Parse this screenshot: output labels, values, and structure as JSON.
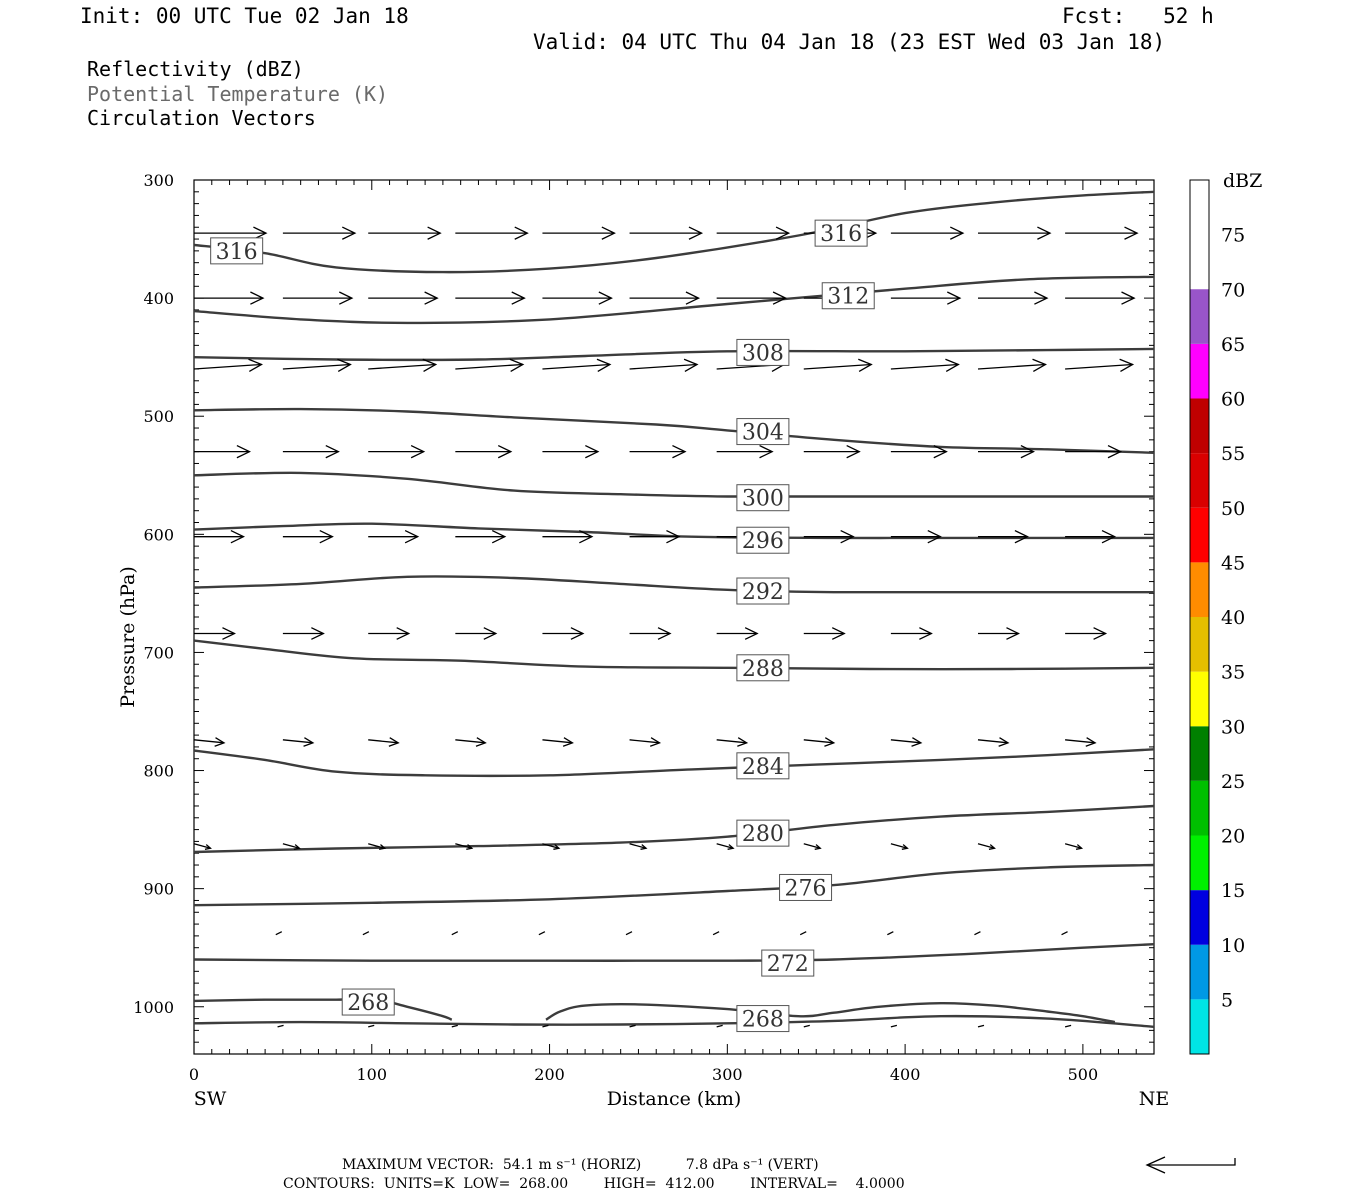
{
  "header": {
    "init": "Init: 00 UTC Tue 02 Jan 18",
    "fcst": "Fcst:   52 h",
    "valid": "Valid: 04 UTC Thu 04 Jan 18 (23 EST Wed 03 Jan 18)"
  },
  "legend": [
    "Reflectivity (dBZ)",
    "Potential Temperature (K)",
    "Circulation Vectors"
  ],
  "footer": {
    "line1": "MAXIMUM VECTOR:  54.1 m s⁻¹ (HORIZ)          7.8 dPa s⁻¹ (VERT)",
    "line2": "CONTOURS:  UNITS=K  LOW=  268.00        HIGH=  412.00        INTERVAL=    4.0000"
  },
  "colors": {
    "contour": "#3c3c3c",
    "vector": "#000000",
    "colorbar": [
      "#00e5e5",
      "#0099e5",
      "#0000e0",
      "#00f000",
      "#00c000",
      "#008000",
      "#ffff00",
      "#e5bf00",
      "#ff8c00",
      "#ff0000",
      "#d90000",
      "#bf0000",
      "#ff00ff",
      "#9955c9"
    ]
  },
  "chart_data": {
    "type": "cross-section",
    "xlabel": "Distance (km)",
    "ylabel": "Pressure (hPa)",
    "xlim": [
      0,
      540
    ],
    "ylim": [
      1040,
      300
    ],
    "x_ticks": [
      0,
      100,
      200,
      300,
      400,
      500
    ],
    "y_ticks": [
      300,
      400,
      500,
      600,
      700,
      800,
      900,
      1000
    ],
    "x_end_labels": {
      "left": "SW",
      "right": "NE"
    },
    "colorbar": {
      "unit": "dBZ",
      "ticks": [
        5,
        10,
        15,
        20,
        25,
        30,
        35,
        40,
        45,
        50,
        55,
        60,
        65,
        70,
        75
      ]
    },
    "contours": [
      {
        "label": "316",
        "points": [
          [
            0,
            355
          ],
          [
            40,
            362
          ],
          [
            80,
            374
          ],
          [
            140,
            378
          ],
          [
            200,
            375
          ],
          [
            260,
            366
          ],
          [
            340,
            347
          ],
          [
            400,
            328
          ],
          [
            450,
            319
          ],
          [
            500,
            313
          ],
          [
            540,
            310
          ]
        ],
        "labels_at": [
          [
            24,
            360
          ],
          [
            364,
            345
          ]
        ]
      },
      {
        "label": "312",
        "points": [
          [
            0,
            411
          ],
          [
            60,
            418
          ],
          [
            120,
            421
          ],
          [
            200,
            418
          ],
          [
            300,
            405
          ],
          [
            400,
            392
          ],
          [
            470,
            384
          ],
          [
            540,
            382
          ]
        ],
        "labels_at": [
          [
            368,
            398
          ]
        ]
      },
      {
        "label": "308",
        "points": [
          [
            0,
            450
          ],
          [
            80,
            452
          ],
          [
            160,
            452
          ],
          [
            220,
            449
          ],
          [
            300,
            445
          ],
          [
            400,
            445
          ],
          [
            480,
            444
          ],
          [
            540,
            443
          ]
        ],
        "labels_at": [
          [
            320,
            446
          ]
        ]
      },
      {
        "label": "304",
        "points": [
          [
            0,
            495
          ],
          [
            60,
            494
          ],
          [
            120,
            496
          ],
          [
            180,
            501
          ],
          [
            260,
            507
          ],
          [
            300,
            512
          ],
          [
            360,
            520
          ],
          [
            420,
            526
          ],
          [
            480,
            528
          ],
          [
            540,
            531
          ]
        ],
        "labels_at": [
          [
            320,
            513
          ]
        ]
      },
      {
        "label": "300",
        "points": [
          [
            0,
            550
          ],
          [
            60,
            548
          ],
          [
            120,
            553
          ],
          [
            180,
            563
          ],
          [
            240,
            566
          ],
          [
            300,
            568
          ],
          [
            400,
            568
          ],
          [
            540,
            568
          ]
        ],
        "labels_at": [
          [
            320,
            569
          ]
        ]
      },
      {
        "label": "296",
        "points": [
          [
            0,
            596
          ],
          [
            50,
            593
          ],
          [
            100,
            591
          ],
          [
            160,
            595
          ],
          [
            220,
            598
          ],
          [
            280,
            602
          ],
          [
            360,
            603
          ],
          [
            440,
            603
          ],
          [
            540,
            603
          ]
        ],
        "labels_at": [
          [
            320,
            605
          ]
        ]
      },
      {
        "label": "292",
        "points": [
          [
            0,
            645
          ],
          [
            60,
            642
          ],
          [
            120,
            636
          ],
          [
            180,
            637
          ],
          [
            240,
            642
          ],
          [
            300,
            647
          ],
          [
            360,
            649
          ],
          [
            440,
            649
          ],
          [
            540,
            649
          ]
        ],
        "labels_at": [
          [
            320,
            648
          ]
        ]
      },
      {
        "label": "288",
        "points": [
          [
            0,
            690
          ],
          [
            40,
            697
          ],
          [
            90,
            705
          ],
          [
            150,
            707
          ],
          [
            220,
            712
          ],
          [
            300,
            713
          ],
          [
            380,
            714
          ],
          [
            460,
            714
          ],
          [
            540,
            713
          ]
        ],
        "labels_at": [
          [
            320,
            713
          ]
        ]
      },
      {
        "label": "284",
        "points": [
          [
            0,
            783
          ],
          [
            40,
            791
          ],
          [
            80,
            801
          ],
          [
            130,
            804
          ],
          [
            200,
            804
          ],
          [
            280,
            799
          ],
          [
            350,
            795
          ],
          [
            420,
            791
          ],
          [
            480,
            787
          ],
          [
            540,
            782
          ]
        ],
        "labels_at": [
          [
            320,
            796
          ]
        ]
      },
      {
        "label": "280",
        "points": [
          [
            0,
            869
          ],
          [
            80,
            866
          ],
          [
            160,
            864
          ],
          [
            240,
            861
          ],
          [
            300,
            856
          ],
          [
            360,
            846
          ],
          [
            420,
            839
          ],
          [
            480,
            835
          ],
          [
            540,
            830
          ]
        ],
        "labels_at": [
          [
            320,
            853
          ]
        ]
      },
      {
        "label": "276",
        "points": [
          [
            0,
            914
          ],
          [
            100,
            912
          ],
          [
            200,
            909
          ],
          [
            300,
            902
          ],
          [
            360,
            897
          ],
          [
            420,
            887
          ],
          [
            480,
            882
          ],
          [
            540,
            880
          ]
        ],
        "labels_at": [
          [
            344,
            899
          ]
        ]
      },
      {
        "label": "272",
        "points": [
          [
            0,
            960
          ],
          [
            100,
            961
          ],
          [
            200,
            961
          ],
          [
            300,
            961
          ],
          [
            360,
            960
          ],
          [
            440,
            955
          ],
          [
            500,
            950
          ],
          [
            540,
            947
          ]
        ],
        "labels_at": [
          [
            334,
            963
          ]
        ]
      },
      {
        "label": "268",
        "points": [
          [
            0,
            995
          ],
          [
            40,
            994
          ],
          [
            80,
            994
          ],
          [
            100,
            993
          ],
          [
            120,
            1000
          ],
          [
            140,
            1008
          ],
          [
            145,
            1011
          ]
        ],
        "labels_at": [
          [
            98,
            996
          ]
        ]
      },
      {
        "label": "268",
        "points": [
          [
            198,
            1011
          ],
          [
            206,
            1004
          ],
          [
            220,
            999
          ],
          [
            250,
            998
          ],
          [
            300,
            1002
          ],
          [
            340,
            1008
          ],
          [
            360,
            1005
          ],
          [
            385,
            1000
          ],
          [
            420,
            997
          ],
          [
            450,
            999
          ],
          [
            480,
            1004
          ],
          [
            500,
            1008
          ],
          [
            518,
            1013
          ]
        ],
        "labels_at": [
          [
            320,
            1010
          ]
        ]
      },
      {
        "label": "",
        "points": [
          [
            0,
            1014
          ],
          [
            60,
            1013
          ],
          [
            120,
            1014
          ],
          [
            180,
            1015
          ],
          [
            240,
            1015
          ],
          [
            300,
            1014
          ],
          [
            360,
            1012
          ],
          [
            420,
            1008
          ],
          [
            480,
            1010
          ],
          [
            540,
            1017
          ]
        ],
        "labels_at": []
      }
    ],
    "vectors": [
      {
        "y": 345,
        "xs": [
          0,
          50,
          98,
          147,
          196,
          245,
          294,
          343,
          392,
          441,
          490
        ],
        "u": 48,
        "v": 0
      },
      {
        "y": 400,
        "xs": [
          0,
          50,
          98,
          147,
          196,
          245,
          294,
          343,
          392,
          441,
          490
        ],
        "u": 46,
        "v": 0
      },
      {
        "y": 460,
        "xs": [
          0,
          50,
          98,
          147,
          196,
          245,
          294,
          343,
          392,
          441,
          490
        ],
        "u": 45,
        "v": 3
      },
      {
        "y": 530,
        "xs": [
          0,
          50,
          98,
          147,
          196,
          245,
          294,
          343,
          392,
          441,
          490
        ],
        "u": 37,
        "v": 0
      },
      {
        "y": 602,
        "xs": [
          0,
          50,
          98,
          147,
          196,
          245,
          294,
          343,
          392,
          441,
          490
        ],
        "u": 33,
        "v": 0
      },
      {
        "y": 684,
        "xs": [
          0,
          50,
          98,
          147,
          196,
          245,
          294,
          343,
          392,
          441,
          490
        ],
        "u": 27,
        "v": 0
      },
      {
        "y": 774,
        "xs": [
          0,
          50,
          98,
          147,
          196,
          245,
          294,
          343,
          392,
          441,
          490
        ],
        "u": 20,
        "v": -2
      },
      {
        "y": 862,
        "xs": [
          0,
          50,
          98,
          147,
          196,
          245,
          294,
          343,
          392,
          441,
          490
        ],
        "u": 11,
        "v": -3
      },
      {
        "y": 939,
        "xs": [
          46,
          95,
          145,
          194,
          243,
          292,
          341,
          390,
          439,
          488
        ],
        "u": 4,
        "v": 2
      },
      {
        "y": 1017,
        "xs": [
          47,
          98,
          145,
          196,
          245,
          294,
          343,
          392,
          441,
          490
        ],
        "u": 4,
        "v": 1
      }
    ]
  }
}
